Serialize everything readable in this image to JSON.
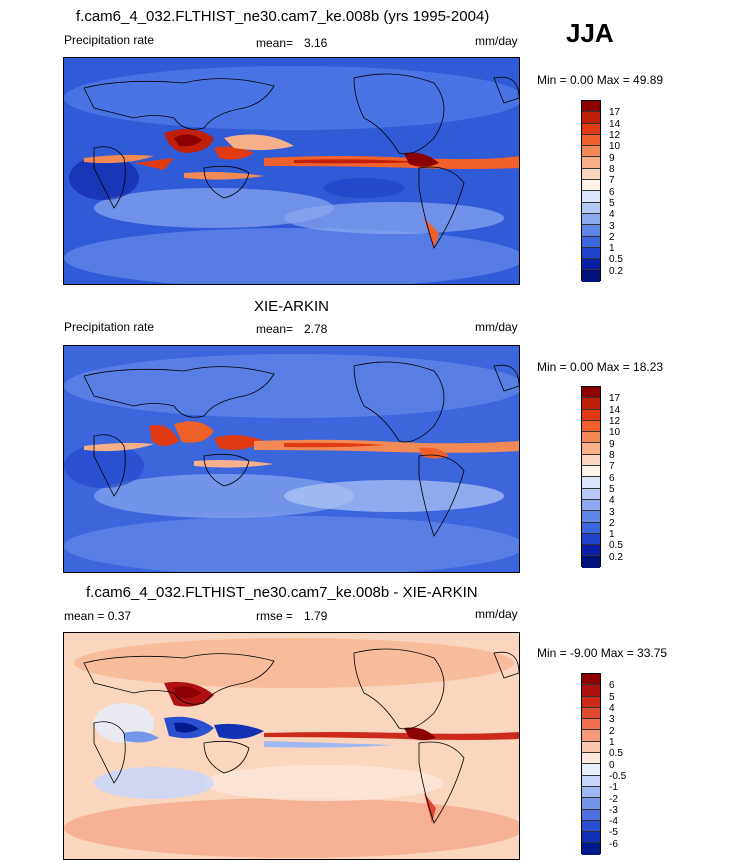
{
  "season": "JJA",
  "panels": [
    {
      "title": "f.cam6_4_032.FLTHIST_ne30.cam7_ke.008b (yrs 1995-2004)",
      "left_label": "Precipitation rate",
      "stat_label": "mean=",
      "stat_value": "3.16",
      "units": "mm/day",
      "minmax": "Min =   0.00 Max =  49.89",
      "ticks": [
        "17",
        "14",
        "12",
        "10",
        "9",
        "8",
        "7",
        "6",
        "5",
        "4",
        "3",
        "2",
        "1",
        "0.5",
        "0.2"
      ],
      "colors": [
        "#8b0000",
        "#c0200a",
        "#e03a12",
        "#f0602a",
        "#f38a55",
        "#f7b08a",
        "#fbd6be",
        "#fff3ea",
        "#dbe5fb",
        "#b5c8f6",
        "#8aa9ef",
        "#5f86e6",
        "#3b66dc",
        "#1e42c9",
        "#0a1fa4",
        "#00127a"
      ]
    },
    {
      "title": "XIE-ARKIN",
      "left_label": "Precipitation rate",
      "stat_label": "mean=",
      "stat_value": "2.78",
      "units": "mm/day",
      "minmax": "Min =   0.00 Max =  18.23",
      "ticks": [
        "17",
        "14",
        "12",
        "10",
        "9",
        "8",
        "7",
        "6",
        "5",
        "4",
        "3",
        "2",
        "1",
        "0.5",
        "0.2"
      ],
      "colors": [
        "#8b0000",
        "#c0200a",
        "#e03a12",
        "#f0602a",
        "#f38a55",
        "#f7b08a",
        "#fbd6be",
        "#fff3ea",
        "#dbe5fb",
        "#b5c8f6",
        "#8aa9ef",
        "#5f86e6",
        "#3b66dc",
        "#1e42c9",
        "#0a1fa4",
        "#00127a"
      ]
    },
    {
      "title": "f.cam6_4_032.FLTHIST_ne30.cam7_ke.008b - XIE-ARKIN",
      "left_label": "mean =   0.37",
      "stat_label": "rmse =",
      "stat_value": "1.79",
      "units": "mm/day",
      "minmax": "Min =  -9.00 Max =  33.75",
      "ticks": [
        "6",
        "5",
        "4",
        "3",
        "2",
        "1",
        "0.5",
        "0",
        "-0.5",
        "-1",
        "-2",
        "-3",
        "-4",
        "-5",
        "-6"
      ],
      "colors": [
        "#8b0000",
        "#b01010",
        "#cc2a1a",
        "#e04a30",
        "#ee7050",
        "#f59a7a",
        "#fbc6ae",
        "#fde8dc",
        "#e7efff",
        "#c6d6fb",
        "#9fb8f4",
        "#7597eb",
        "#4d72df",
        "#2a4fcf",
        "#1230b3",
        "#001a8c"
      ]
    }
  ]
}
